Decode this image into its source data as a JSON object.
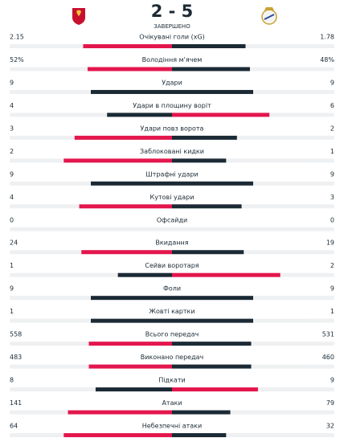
{
  "header": {
    "score": "2 - 5",
    "status": "ЗАВЕРШЕНО"
  },
  "colors": {
    "lead": "#e3164d",
    "other": "#1b2a35",
    "track": "#eef0f2"
  },
  "stats": [
    {
      "label": "Очікувані голи (xG)",
      "home": 2.15,
      "away": 1.78
    },
    {
      "label": "Володіння м'ячем",
      "home": 52,
      "away": 48,
      "home_label": "52%",
      "away_label": "48%"
    },
    {
      "label": "Удари",
      "home": 9,
      "away": 9
    },
    {
      "label": "Удари в площину воріт",
      "home": 4,
      "away": 6
    },
    {
      "label": "Удари повз ворота",
      "home": 3,
      "away": 2
    },
    {
      "label": "Заблоковані кидки",
      "home": 2,
      "away": 1
    },
    {
      "label": "Штрафні удари",
      "home": 9,
      "away": 9
    },
    {
      "label": "Кутові удари",
      "home": 4,
      "away": 3
    },
    {
      "label": "Офсайди",
      "home": 0,
      "away": 0
    },
    {
      "label": "Вкидання",
      "home": 24,
      "away": 19
    },
    {
      "label": "Сейви воротаря",
      "home": 1,
      "away": 2
    },
    {
      "label": "Фоли",
      "home": 9,
      "away": 9
    },
    {
      "label": "Жовті картки",
      "home": 1,
      "away": 1
    },
    {
      "label": "Всього передач",
      "home": 558,
      "away": 531
    },
    {
      "label": "Виконано передач",
      "home": 483,
      "away": 460
    },
    {
      "label": "Підкати",
      "home": 8,
      "away": 9
    },
    {
      "label": "Атаки",
      "home": 141,
      "away": 79
    },
    {
      "label": "Небезпечні атаки",
      "home": 64,
      "away": 32
    }
  ]
}
